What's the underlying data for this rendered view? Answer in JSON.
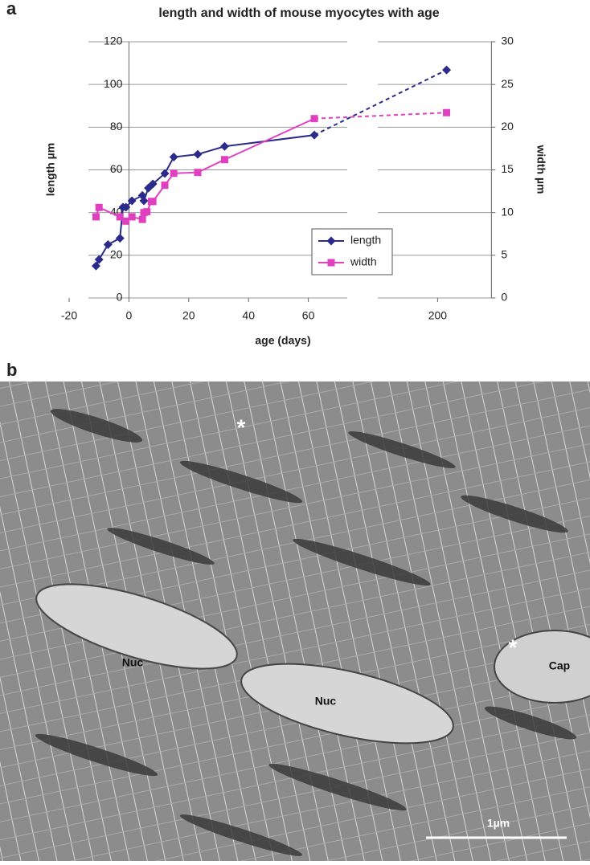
{
  "panel_a_label": "a",
  "panel_b_label": "b",
  "chart_data": {
    "type": "line",
    "title": "length and width of mouse myocytes with age",
    "x_label": "age (days)",
    "y_label": "length µm",
    "y2_label": "width µm",
    "x_segments": [
      {
        "xlim": [
          -20,
          73
        ],
        "xticks": [
          -20,
          0,
          20,
          40,
          60
        ]
      },
      {
        "xlim": [
          180,
          218
        ],
        "xticks": [
          200
        ]
      }
    ],
    "ylim": [
      0,
      120
    ],
    "yticks": [
      0,
      20,
      40,
      60,
      80,
      100,
      120
    ],
    "y2lim": [
      0,
      30
    ],
    "y2ticks": [
      0,
      5,
      10,
      15,
      20,
      25,
      30
    ],
    "grid": true,
    "legend": "lower right",
    "series": [
      {
        "name": "length",
        "color": "#2b2b8c",
        "marker": "diamond",
        "x": [
          -11,
          -10,
          -7,
          -3,
          -2,
          -1,
          1,
          4.5,
          5,
          6.5,
          8,
          12,
          15,
          23,
          32,
          62,
          203
        ],
        "values": [
          15,
          18,
          25,
          28,
          42.5,
          42.5,
          45.5,
          48,
          45.5,
          51.5,
          53.4,
          58.3,
          66,
          67.3,
          71,
          76.3,
          106.8
        ]
      },
      {
        "name": "width",
        "color": "#e040c0",
        "marker": "square",
        "axis": "y2",
        "x": [
          -11,
          -10,
          -3,
          -1,
          1,
          4.5,
          5,
          6,
          7.5,
          8,
          12,
          15,
          23,
          32,
          62,
          203
        ],
        "values": [
          9.5,
          10.6,
          9.5,
          9,
          9.5,
          9.2,
          10,
          10.1,
          11.3,
          11.3,
          13.2,
          14.6,
          14.7,
          16.2,
          21,
          21.7
        ]
      }
    ]
  },
  "micrograph": {
    "labels": [
      "*",
      "*",
      "Nuc",
      "Nuc",
      "Cap",
      "1µm"
    ]
  }
}
